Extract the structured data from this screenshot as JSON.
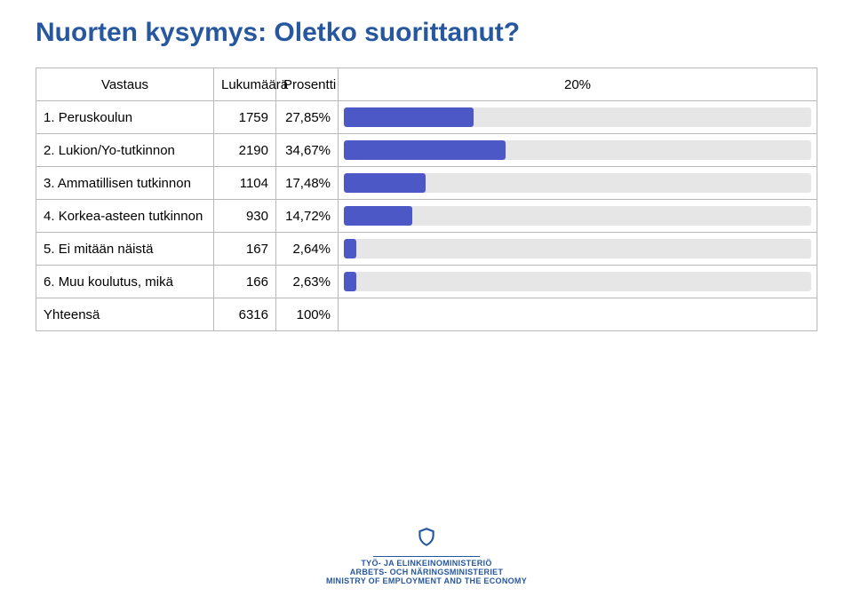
{
  "title": "Nuorten kysymys: Oletko suorittanut?",
  "title_color": "#26579f",
  "title_fontsize": 30,
  "header": {
    "answer": "Vastaus",
    "count": "Lukumäärä",
    "percent": "Prosentti",
    "axis": "20%"
  },
  "bar": {
    "bg_color": "#e6e6e6",
    "fill_color": "#4c58c6",
    "full_scale_percent": 100
  },
  "rows": [
    {
      "n": "1.",
      "label": "Peruskoulun",
      "count": "1759",
      "pct": "27,85%",
      "value": 27.85
    },
    {
      "n": "2.",
      "label": "Lukion/Yo-tutkinnon",
      "count": "2190",
      "pct": "34,67%",
      "value": 34.67
    },
    {
      "n": "3.",
      "label": "Ammatillisen tutkinnon",
      "count": "1104",
      "pct": "17,48%",
      "value": 17.48
    },
    {
      "n": "4.",
      "label": "Korkea-asteen tutkinnon",
      "count": "930",
      "pct": "14,72%",
      "value": 14.72
    },
    {
      "n": "5.",
      "label": "Ei mitään näistä",
      "count": "167",
      "pct": "2,64%",
      "value": 2.64
    },
    {
      "n": "6.",
      "label": "Muu koulutus, mikä",
      "count": "166",
      "pct": "2,63%",
      "value": 2.63
    }
  ],
  "total": {
    "label": "Yhteensä",
    "count": "6316",
    "pct": "100%"
  },
  "footer": {
    "line1": "TYÖ- JA ELINKEINOMINISTERIÖ",
    "line2": "ARBETS- OCH NÄRINGSMINISTERIET",
    "line3": "MINISTRY OF EMPLOYMENT AND THE ECONOMY"
  }
}
